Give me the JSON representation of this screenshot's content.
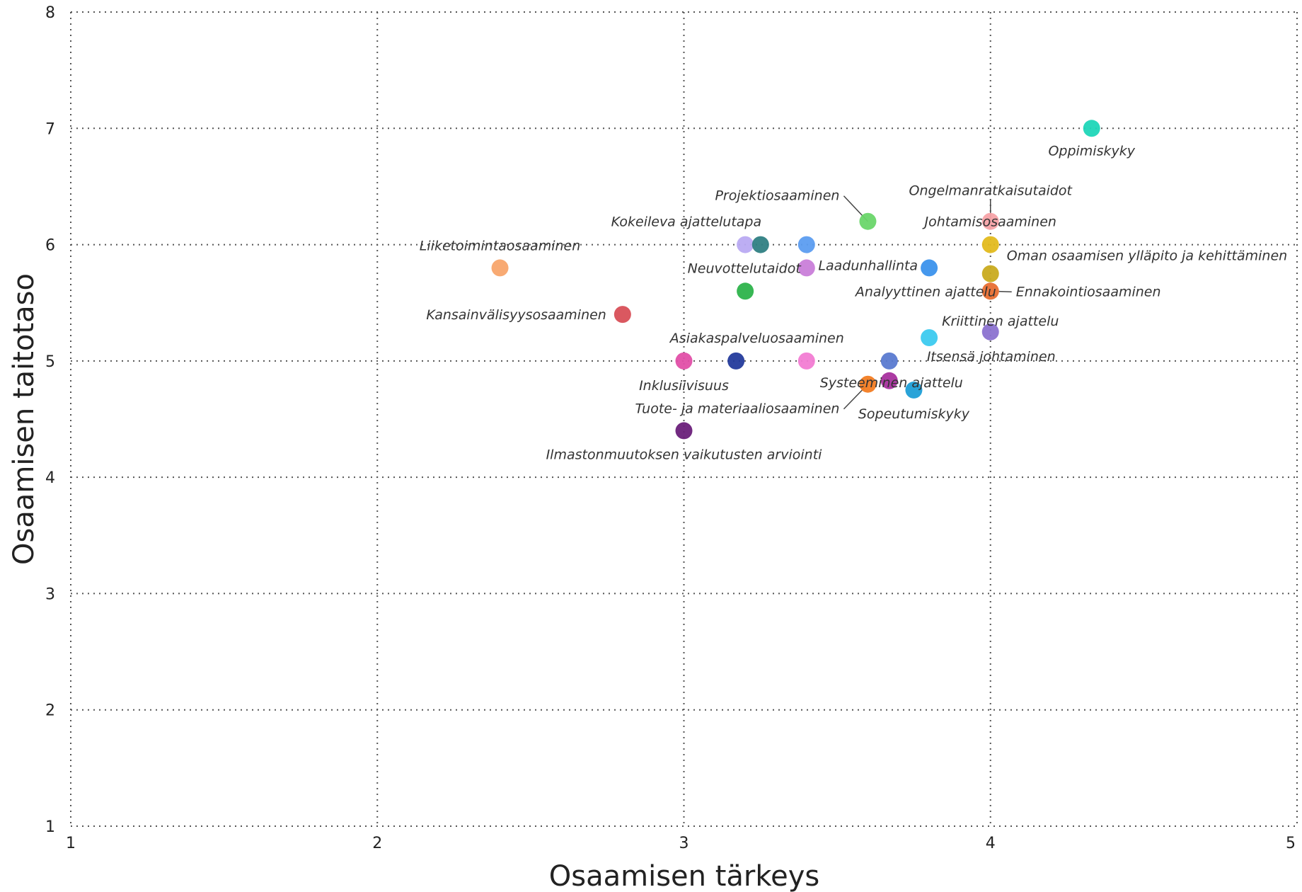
{
  "chart_data": {
    "type": "scatter",
    "xlabel": "Osaamisen tärkeys",
    "ylabel": "Osaamisen taitotaso",
    "xlim": [
      1,
      5
    ],
    "ylim": [
      1,
      8
    ],
    "xticks": [
      "1",
      "2",
      "3",
      "4",
      "5"
    ],
    "yticks": [
      "1",
      "2",
      "3",
      "4",
      "5",
      "6",
      "7",
      "8"
    ],
    "grid": true,
    "points": [
      {
        "name": "Oppimiskyky",
        "x": 4.33,
        "y": 7.0,
        "color": "#1fd6b8"
      },
      {
        "name": "Ongelmanratkaisutaidot",
        "x": 4.0,
        "y": 6.2,
        "color": "#f7a3a8"
      },
      {
        "name": "Johtamisosaaminen",
        "x": 4.0,
        "y": 6.0,
        "color": "#e3bb1e"
      },
      {
        "name": "Oman osaamisen ylläpito ja kehittäminen",
        "x": 4.0,
        "y": 5.75,
        "color": "#c9ab1f"
      },
      {
        "name": "Analyyttinen ajattelu",
        "x": 4.0,
        "y": 5.6,
        "color": "#f28a4e"
      },
      {
        "name": "Ennakointiosaaminen",
        "x": 4.0,
        "y": 5.6,
        "color": "#e8743b"
      },
      {
        "name": "Kriittinen ajattelu",
        "x": 4.0,
        "y": 5.25,
        "color": "#8b72d0"
      },
      {
        "name": "Projektiosaaminen",
        "x": 3.6,
        "y": 6.2,
        "color": "#6ad66a"
      },
      {
        "name": "Kokeileva ajattelutapa",
        "x": 3.2,
        "y": 6.0,
        "color": "#b9aaf2"
      },
      {
        "name": "",
        "x": 3.25,
        "y": 6.0,
        "color": "#2f8083"
      },
      {
        "name": "",
        "x": 3.4,
        "y": 6.0,
        "color": "#5c9df0"
      },
      {
        "name": "Laadunhallinta",
        "x": 3.8,
        "y": 5.8,
        "color": "#3b92ec"
      },
      {
        "name": "Neuvottelutaidot",
        "x": 3.4,
        "y": 5.8,
        "color": "#c97ed9"
      },
      {
        "name": "",
        "x": 3.2,
        "y": 5.6,
        "color": "#2db34b"
      },
      {
        "name": "Liiketoimintaosaaminen",
        "x": 2.4,
        "y": 5.8,
        "color": "#f8a56c"
      },
      {
        "name": "Kansainvälisyysosaaminen",
        "x": 2.8,
        "y": 5.4,
        "color": "#d84f57"
      },
      {
        "name": "Asiakaspalveluosaaminen",
        "x": 3.4,
        "y": 5.0,
        "color": "#f27cd3"
      },
      {
        "name": "Inklusiivisuus",
        "x": 3.0,
        "y": 5.0,
        "color": "#e14fa8"
      },
      {
        "name": "",
        "x": 3.17,
        "y": 5.0,
        "color": "#243b9c"
      },
      {
        "name": "Itsensä johtaminen",
        "x": 3.67,
        "y": 5.0,
        "color": "#5a7ad0"
      },
      {
        "name": "",
        "x": 3.8,
        "y": 5.2,
        "color": "#3ccaef"
      },
      {
        "name": "Systeeminen ajattelu",
        "x": 3.67,
        "y": 4.83,
        "color": "#a8309e"
      },
      {
        "name": "Tuote- ja materiaaliosaaminen",
        "x": 3.6,
        "y": 4.8,
        "color": "#f27c22"
      },
      {
        "name": "Sopeutumiskyky",
        "x": 3.75,
        "y": 4.75,
        "color": "#1d9ed6"
      },
      {
        "name": "Ilmastonmuutoksen vaikutusten arviointi",
        "x": 3.0,
        "y": 4.4,
        "color": "#6a1f7a"
      }
    ]
  }
}
